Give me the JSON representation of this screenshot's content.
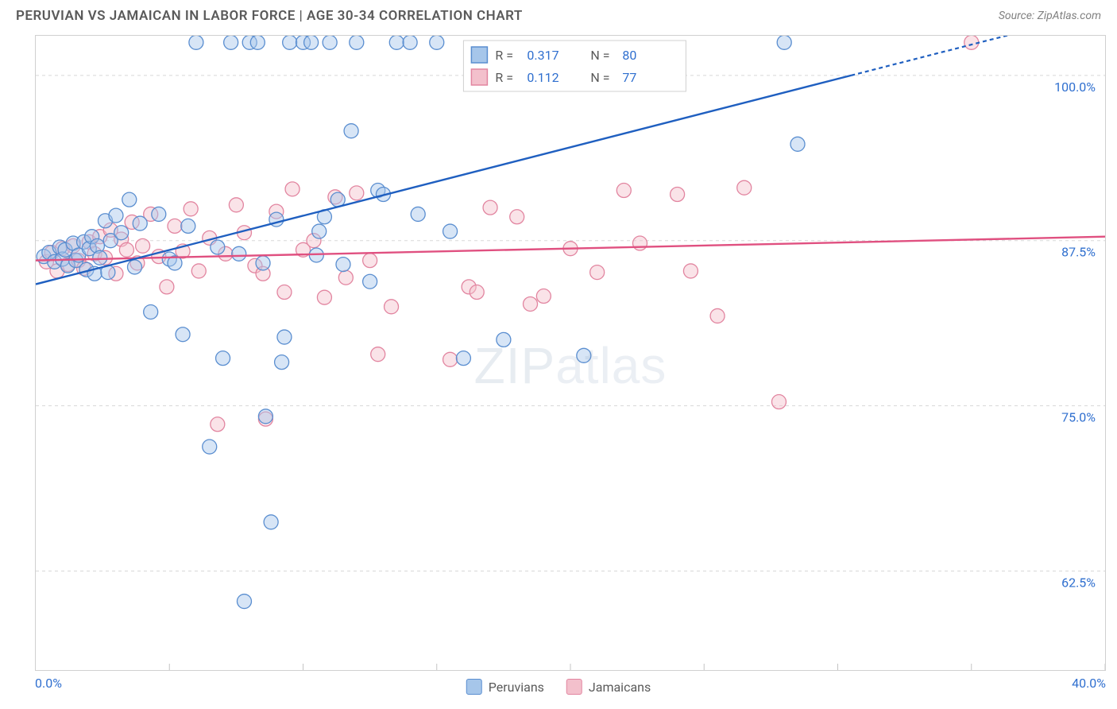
{
  "header": {
    "title": "PERUVIAN VS JAMAICAN IN LABOR FORCE | AGE 30-34 CORRELATION CHART",
    "source": "Source: ZipAtlas.com"
  },
  "ylabel": "In Labor Force | Age 30-34",
  "watermark": {
    "bold": "ZIP",
    "light": "atlas"
  },
  "chart": {
    "type": "scatter-correlation",
    "background_color": "#ffffff",
    "grid_color": "#d8d8d8",
    "border_color": "#d0d0d0",
    "marker_radius": 9,
    "xlim": [
      0,
      40
    ],
    "ylim": [
      55,
      103
    ],
    "xticks": [
      0,
      5,
      10,
      15,
      20,
      25,
      30,
      35,
      40
    ],
    "yticks": [
      62.5,
      75.0,
      87.5,
      100.0
    ],
    "xtick_label_left": "0.0%",
    "xtick_label_right": "40.0%",
    "ytick_labels": [
      "62.5%",
      "75.0%",
      "87.5%",
      "100.0%"
    ],
    "tick_label_color": "#2f6fcf",
    "tick_label_fontsize": 16,
    "series": {
      "peruvians": {
        "label": "Peruvians",
        "fill": "#a6c6ea",
        "stroke": "#5a8ed0",
        "line_color": "#1f5fc0",
        "R": "0.317",
        "N": "80",
        "trend": {
          "x1": 0,
          "y1": 84.2,
          "x2": 30.5,
          "y2": 100.0,
          "dash_to_x": 40
        },
        "points": [
          [
            0.3,
            86.3
          ],
          [
            0.5,
            86.6
          ],
          [
            0.7,
            85.9
          ],
          [
            0.9,
            87.0
          ],
          [
            1.0,
            86.1
          ],
          [
            1.1,
            86.8
          ],
          [
            1.2,
            85.6
          ],
          [
            1.4,
            87.3
          ],
          [
            1.5,
            86.0
          ],
          [
            1.6,
            86.4
          ],
          [
            1.8,
            87.4
          ],
          [
            1.9,
            85.3
          ],
          [
            2.0,
            86.9
          ],
          [
            2.1,
            87.8
          ],
          [
            2.2,
            85.0
          ],
          [
            2.3,
            87.1
          ],
          [
            2.4,
            86.2
          ],
          [
            2.6,
            89.0
          ],
          [
            2.7,
            85.1
          ],
          [
            2.8,
            87.5
          ],
          [
            3.0,
            89.4
          ],
          [
            3.2,
            88.1
          ],
          [
            3.5,
            90.6
          ],
          [
            3.7,
            85.5
          ],
          [
            3.9,
            88.8
          ],
          [
            4.3,
            82.1
          ],
          [
            4.6,
            89.5
          ],
          [
            5.0,
            86.1
          ],
          [
            5.2,
            85.8
          ],
          [
            5.5,
            80.4
          ],
          [
            5.7,
            88.6
          ],
          [
            6.0,
            102.5
          ],
          [
            6.5,
            71.9
          ],
          [
            6.8,
            87.0
          ],
          [
            7.0,
            78.6
          ],
          [
            7.3,
            102.5
          ],
          [
            7.6,
            86.5
          ],
          [
            7.8,
            60.2
          ],
          [
            8.0,
            102.5
          ],
          [
            8.3,
            102.5
          ],
          [
            8.5,
            85.8
          ],
          [
            8.6,
            74.2
          ],
          [
            9.0,
            89.1
          ],
          [
            9.2,
            78.3
          ],
          [
            9.5,
            102.5
          ],
          [
            10.0,
            102.5
          ],
          [
            10.3,
            102.5
          ],
          [
            10.5,
            86.4
          ],
          [
            10.8,
            89.3
          ],
          [
            11.0,
            102.5
          ],
          [
            11.3,
            90.6
          ],
          [
            11.5,
            85.7
          ],
          [
            11.8,
            95.8
          ],
          [
            12.0,
            102.5
          ],
          [
            12.5,
            84.4
          ],
          [
            12.8,
            91.3
          ],
          [
            13.0,
            91.0
          ],
          [
            13.5,
            102.5
          ],
          [
            14.0,
            102.5
          ],
          [
            14.3,
            89.5
          ],
          [
            8.8,
            66.2
          ],
          [
            9.3,
            80.2
          ],
          [
            10.6,
            88.2
          ],
          [
            15.0,
            102.5
          ],
          [
            15.5,
            88.2
          ],
          [
            16.0,
            78.6
          ],
          [
            17.5,
            80.0
          ],
          [
            20.5,
            78.8
          ],
          [
            28.0,
            102.5
          ],
          [
            28.5,
            94.8
          ]
        ]
      },
      "jamaicans": {
        "label": "Jamaicans",
        "fill": "#f3c0cc",
        "stroke": "#e285a0",
        "line_color": "#e05080",
        "R": "0.112",
        "N": "77",
        "trend": {
          "x1": 0,
          "y1": 86.0,
          "x2": 40,
          "y2": 87.8
        },
        "points": [
          [
            0.4,
            85.9
          ],
          [
            0.6,
            86.6
          ],
          [
            0.8,
            85.2
          ],
          [
            1.0,
            86.9
          ],
          [
            1.2,
            85.7
          ],
          [
            1.4,
            87.1
          ],
          [
            1.6,
            86.0
          ],
          [
            1.8,
            85.4
          ],
          [
            2.0,
            87.4
          ],
          [
            2.2,
            86.5
          ],
          [
            2.4,
            87.8
          ],
          [
            2.6,
            86.2
          ],
          [
            2.8,
            88.3
          ],
          [
            3.0,
            85.0
          ],
          [
            3.2,
            87.6
          ],
          [
            3.4,
            86.8
          ],
          [
            3.6,
            88.9
          ],
          [
            3.8,
            85.8
          ],
          [
            4.0,
            87.1
          ],
          [
            4.3,
            89.5
          ],
          [
            4.6,
            86.3
          ],
          [
            4.9,
            84.0
          ],
          [
            5.2,
            88.6
          ],
          [
            5.5,
            86.7
          ],
          [
            5.8,
            89.9
          ],
          [
            6.1,
            85.2
          ],
          [
            6.5,
            87.7
          ],
          [
            6.8,
            73.6
          ],
          [
            7.1,
            86.5
          ],
          [
            7.5,
            90.2
          ],
          [
            7.8,
            88.1
          ],
          [
            8.2,
            85.6
          ],
          [
            8.5,
            85.0
          ],
          [
            8.6,
            74.0
          ],
          [
            9.0,
            89.7
          ],
          [
            9.3,
            83.6
          ],
          [
            9.6,
            91.4
          ],
          [
            10.0,
            86.8
          ],
          [
            10.4,
            87.5
          ],
          [
            10.8,
            83.2
          ],
          [
            11.2,
            90.8
          ],
          [
            11.6,
            84.7
          ],
          [
            12.0,
            91.1
          ],
          [
            12.5,
            86.0
          ],
          [
            12.8,
            78.9
          ],
          [
            13.3,
            82.5
          ],
          [
            15.5,
            78.5
          ],
          [
            16.2,
            84.0
          ],
          [
            16.5,
            83.6
          ],
          [
            17.0,
            90.0
          ],
          [
            18.0,
            89.3
          ],
          [
            18.5,
            82.7
          ],
          [
            19.0,
            83.3
          ],
          [
            20.0,
            86.9
          ],
          [
            21.0,
            85.1
          ],
          [
            22.0,
            91.3
          ],
          [
            22.6,
            87.3
          ],
          [
            24.0,
            91.0
          ],
          [
            24.5,
            85.2
          ],
          [
            25.5,
            81.8
          ],
          [
            26.5,
            91.5
          ],
          [
            27.8,
            75.3
          ],
          [
            35.0,
            102.5
          ]
        ]
      }
    }
  },
  "top_legend": {
    "rows": [
      {
        "series": "peruvians",
        "r_label": "R =",
        "n_label": "N ="
      },
      {
        "series": "jamaicans",
        "r_label": "R =",
        "n_label": "N ="
      }
    ]
  },
  "bottom_legend": {
    "items": [
      {
        "series": "peruvians"
      },
      {
        "series": "jamaicans"
      }
    ]
  }
}
